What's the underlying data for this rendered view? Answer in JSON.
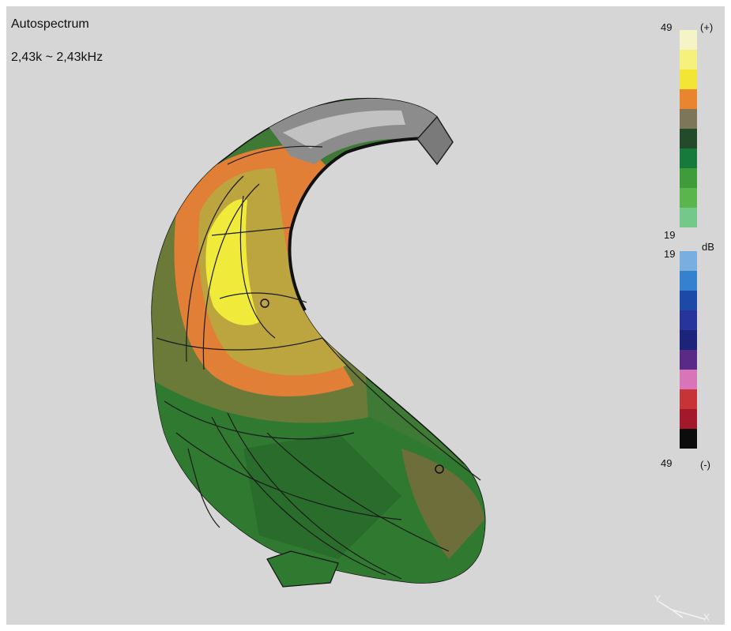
{
  "view": {
    "title": "Autospectrum",
    "frequency_range": "2,43k ~ 2,43kHz"
  },
  "color_scale": {
    "upper": {
      "top_value": "49",
      "top_sign": "(+)",
      "bottom_value": "19",
      "colors": [
        "#f4f4c6",
        "#f6f17a",
        "#f2e535",
        "#e8852e",
        "#7e7658",
        "#224a2b",
        "#167a3c",
        "#3e9c3b",
        "#59b54c",
        "#73c88a"
      ]
    },
    "unit": "dB",
    "lower": {
      "top_value": "19",
      "bottom_value": "49",
      "bottom_sign": "(-)",
      "colors": [
        "#79aee0",
        "#3581d0",
        "#1d4aa8",
        "#26349b",
        "#1b237a",
        "#5a2b86",
        "#d874b8",
        "#c73438",
        "#a3182a",
        "#0c0c0c"
      ]
    }
  },
  "axes": {
    "y": "Y",
    "x": "X"
  }
}
